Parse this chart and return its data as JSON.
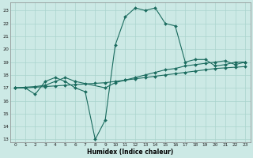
{
  "xlabel": "Humidex (Indice chaleur)",
  "background_color": "#cce9e5",
  "grid_color": "#aad4ce",
  "line_color": "#1a6b5e",
  "xlim": [
    -0.5,
    23.5
  ],
  "ylim": [
    12.8,
    23.6
  ],
  "yticks": [
    13,
    14,
    15,
    16,
    17,
    18,
    19,
    20,
    21,
    22,
    23
  ],
  "xticks": [
    0,
    1,
    2,
    3,
    4,
    5,
    6,
    7,
    8,
    9,
    10,
    11,
    12,
    13,
    14,
    15,
    16,
    17,
    18,
    19,
    20,
    21,
    22,
    23
  ],
  "line1_x": [
    0,
    1,
    2,
    3,
    4,
    5,
    6,
    7,
    8,
    9,
    10,
    11,
    12,
    13,
    14,
    15,
    16,
    17,
    18,
    19,
    20,
    21,
    22,
    23
  ],
  "line1_y": [
    17.0,
    17.0,
    16.5,
    17.5,
    17.8,
    17.5,
    17.0,
    16.7,
    13.0,
    14.5,
    20.3,
    22.5,
    23.2,
    23.0,
    23.2,
    22.0,
    21.8,
    19.0,
    19.2,
    19.2,
    18.7,
    18.8,
    19.0,
    19.0
  ],
  "line2_x": [
    0,
    2,
    3,
    4,
    5,
    6,
    9,
    10,
    11,
    12,
    13,
    14,
    15,
    16,
    17,
    18,
    19,
    20,
    21,
    22,
    23
  ],
  "line2_y": [
    17.0,
    17.1,
    17.2,
    17.5,
    17.8,
    17.5,
    17.0,
    17.4,
    17.6,
    17.8,
    18.0,
    18.2,
    18.4,
    18.5,
    18.7,
    18.8,
    18.9,
    19.0,
    19.1,
    18.8,
    19.0
  ],
  "line3_x": [
    0,
    1,
    2,
    3,
    4,
    5,
    6,
    7,
    8,
    9,
    10,
    11,
    12,
    13,
    14,
    15,
    16,
    17,
    18,
    19,
    20,
    21,
    22,
    23
  ],
  "line3_y": [
    17.0,
    17.0,
    17.05,
    17.1,
    17.15,
    17.2,
    17.25,
    17.3,
    17.35,
    17.4,
    17.5,
    17.6,
    17.7,
    17.8,
    17.9,
    18.0,
    18.1,
    18.2,
    18.3,
    18.4,
    18.5,
    18.55,
    18.6,
    18.65
  ]
}
